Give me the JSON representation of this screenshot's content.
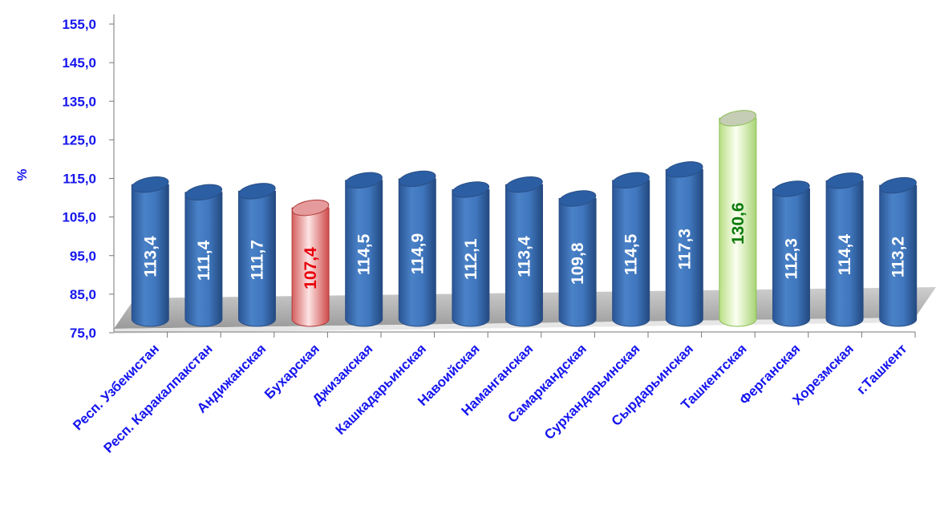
{
  "chart_data": {
    "type": "bar",
    "title": "",
    "xlabel": "",
    "ylabel": "%",
    "ylim": [
      75,
      155
    ],
    "yticks": [
      "75,0",
      "85,0",
      "95,0",
      "105,0",
      "115,0",
      "125,0",
      "135,0",
      "145,0",
      "155,0"
    ],
    "categories": [
      "Респ. Узбекистан",
      "Респ. Каракалпакстан",
      "Андижанская",
      "Бухарская",
      "Джизакская",
      "Кашкадарьинская",
      "Навоийская",
      "Наманганская",
      "Самаркандская",
      "Сурхандарьинская",
      "Сырдарьинская",
      "Ташкентская",
      "Ферганская",
      "Хорезмская",
      "г.Ташкент"
    ],
    "values": [
      113.4,
      111.4,
      111.7,
      107.4,
      114.5,
      114.9,
      112.1,
      113.4,
      109.8,
      114.5,
      117.3,
      130.6,
      112.3,
      114.4,
      113.2
    ],
    "value_labels": [
      "113,4",
      "111,4",
      "111,7",
      "107,4",
      "114,5",
      "114,9",
      "112,1",
      "113,4",
      "109,8",
      "114,5",
      "117,3",
      "130,6",
      "112,3",
      "114,4",
      "113,2"
    ],
    "highlight": {
      "min_index": 3,
      "max_index": 11
    },
    "colors": {
      "default_bar": "#3b6fb6",
      "min_bar": "#e07a7a",
      "max_bar": "#d8f0b0",
      "default_label": "#ffffff",
      "min_label": "#e8000b",
      "max_label": "#0a7a0a",
      "axis_text": "#1515ee"
    },
    "grid": false,
    "legend": "none"
  }
}
